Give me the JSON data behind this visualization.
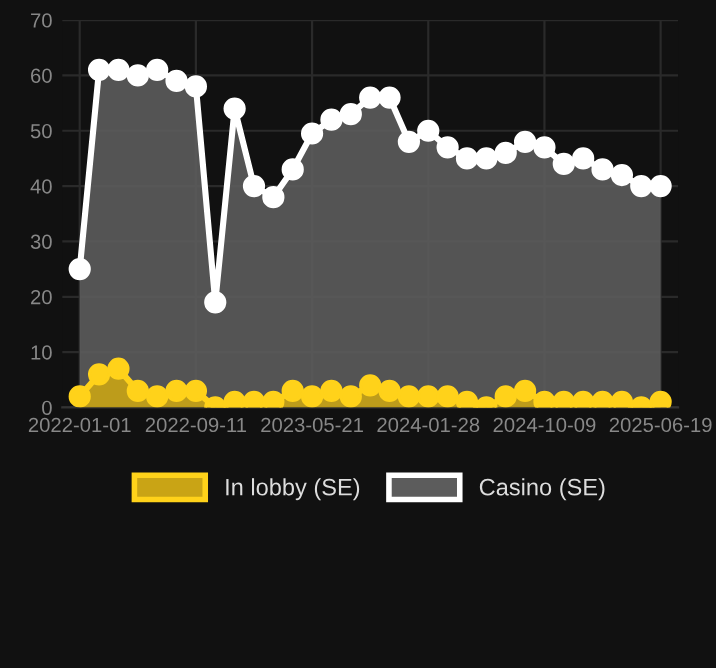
{
  "chart_data": {
    "type": "area",
    "categories": [
      "2022-01-01",
      null,
      null,
      null,
      null,
      null,
      "2022-09-11",
      null,
      null,
      null,
      null,
      null,
      "2023-05-21",
      null,
      null,
      null,
      null,
      null,
      "2024-01-28",
      null,
      null,
      null,
      null,
      null,
      "2024-10-09",
      null,
      null,
      null,
      null,
      null,
      "2025-06-19"
    ],
    "series": [
      {
        "name": "In lobby (SE)",
        "color": "#ffd21a",
        "values": [
          2,
          6,
          7,
          3,
          2,
          3,
          3,
          0,
          1,
          1,
          1,
          3,
          2,
          3,
          2,
          4,
          3,
          2,
          2,
          2,
          1,
          0,
          2,
          3,
          1,
          1,
          1,
          1,
          1,
          0,
          1
        ]
      },
      {
        "name": "Casino (SE)",
        "color": "#ffffff",
        "values": [
          25,
          61,
          61,
          60,
          61,
          59,
          58,
          19,
          54,
          40,
          38,
          43,
          49.5,
          52,
          53,
          56,
          56,
          48,
          50,
          47,
          45,
          45,
          46,
          48,
          47,
          44,
          45,
          43,
          42,
          40,
          40
        ]
      }
    ],
    "ylim": [
      0,
      70
    ],
    "yticks": [
      0,
      10,
      20,
      30,
      40,
      50,
      60,
      70
    ],
    "grid": true,
    "legend": "bottom",
    "marker": "circle"
  }
}
